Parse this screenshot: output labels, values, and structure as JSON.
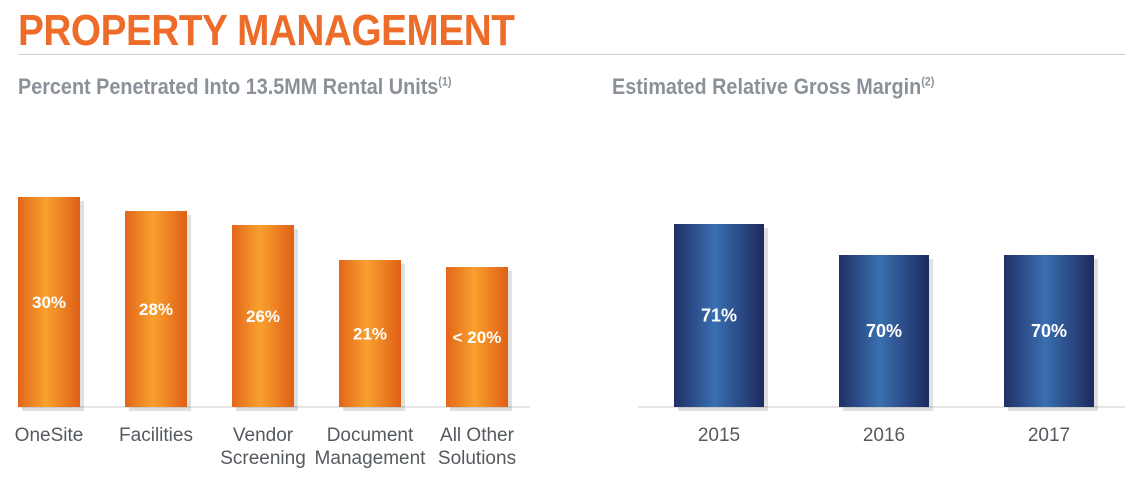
{
  "page": {
    "title": "PROPERTY MANAGEMENT"
  },
  "colors": {
    "title": "#EE6C2A",
    "orange_bar": "#F07F22",
    "blue_bar": "#26407E",
    "subtitle": "#8A9198",
    "axis": "#CCCCCC"
  },
  "chart_data": [
    {
      "type": "bar",
      "title": "Percent Penetrated Into 13.5MM Rental Units",
      "title_footnote": "(1)",
      "categories": [
        [
          "OneSite"
        ],
        [
          "Facilities"
        ],
        [
          "Vendor",
          "Screening"
        ],
        [
          "Document",
          "Management"
        ],
        [
          "All Other",
          "Solutions"
        ]
      ],
      "values": [
        30,
        28,
        26,
        21,
        20
      ],
      "data_labels": [
        "30%",
        "28%",
        "26%",
        "21%",
        "< 20%"
      ],
      "ylim": [
        0,
        30
      ],
      "color": "orange"
    },
    {
      "type": "bar",
      "title": "Estimated Relative Gross Margin",
      "title_footnote": "(2)",
      "categories": [
        [
          "2015"
        ],
        [
          "2016"
        ],
        [
          "2017"
        ]
      ],
      "values": [
        71,
        70,
        70
      ],
      "data_labels": [
        "71%",
        "70%",
        "70%"
      ],
      "color": "blue"
    }
  ]
}
